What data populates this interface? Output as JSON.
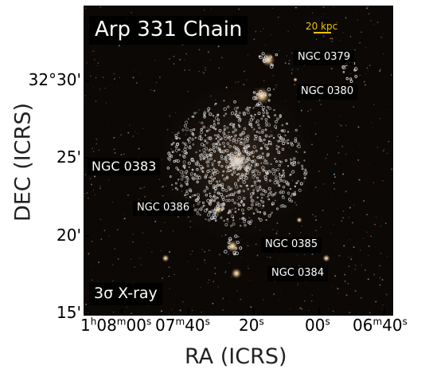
{
  "title": "Arp 331 Chain",
  "scale_bar_label": "20 kpc",
  "xray_label": "3σ X-ray",
  "galaxies": [
    "NGC 0379",
    "NGC 0380",
    "NGC 0383",
    "NGC 0386",
    "NGC 0385",
    "NGC 0384"
  ],
  "axes": {
    "xlabel": "RA (ICRS)",
    "ylabel": "DEC (ICRS)",
    "yticks": [
      "32°30'",
      "25'",
      "20'",
      "15'"
    ],
    "xticks": [
      {
        "main": "1",
        "sup1": "h",
        "mid": "08",
        "sup2": "m",
        "end": "00",
        "sup3": "s"
      },
      {
        "main": "07",
        "sup1": "m",
        "mid": "40",
        "sup2": "s"
      },
      {
        "main": "20",
        "sup1": "s"
      },
      {
        "main": "00",
        "sup1": "s"
      },
      {
        "main": "06",
        "sup1": "m",
        "mid": "40",
        "sup2": "s"
      }
    ]
  },
  "colors": {
    "background": "#0b0806",
    "contours": "#d9d9d9",
    "scale_bar": "#f2c200"
  }
}
